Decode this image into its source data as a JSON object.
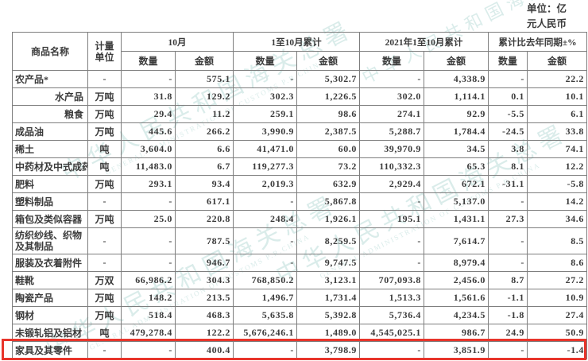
{
  "meta": {
    "unit_note_line1": "单位：亿",
    "unit_note_line2": "元人民币"
  },
  "watermark": {
    "cn": "中华人民共和国海关总署",
    "en": "GENERAL ADMINISTRATION OF CUSTOMS P.R.CHINA"
  },
  "colors": {
    "highlight_red": "#e8352b",
    "watermark_teal": "rgba(134,192,184,0.30)",
    "text": "#3b3b3b",
    "border": "#7e7e7e"
  },
  "table": {
    "headers": {
      "commodity": "商品名称",
      "unit": "计量单位",
      "groups": [
        "10月",
        "1至10月累计",
        "2021年1至10月累计",
        "累计比去年同期±%"
      ],
      "qty": "数量",
      "amt": "金额"
    },
    "rows": [
      {
        "name": "农产品*",
        "sub": false,
        "tall": false,
        "highlight": false,
        "unit": "-",
        "values": [
          "-",
          "575.1",
          "-",
          "5,302.7",
          "-",
          "4,338.9",
          "-",
          "22.2"
        ]
      },
      {
        "name": "水产品",
        "sub": true,
        "tall": false,
        "highlight": false,
        "unit": "万吨",
        "values": [
          "31.8",
          "129.2",
          "302.3",
          "1,226.5",
          "302.0",
          "1,114.1",
          "0.1",
          "10.1"
        ]
      },
      {
        "name": "粮食",
        "sub": true,
        "tall": false,
        "highlight": false,
        "unit": "万吨",
        "values": [
          "29.4",
          "11.2",
          "259.1",
          "98.6",
          "274.1",
          "92.9",
          "-5.5",
          "6.1"
        ]
      },
      {
        "name": "成品油",
        "sub": false,
        "tall": false,
        "highlight": false,
        "unit": "万吨",
        "values": [
          "445.6",
          "266.2",
          "3,990.9",
          "2,387.5",
          "5,288.7",
          "1,784.4",
          "-24.5",
          "33.8"
        ]
      },
      {
        "name": "稀土",
        "sub": false,
        "tall": false,
        "highlight": false,
        "unit": "吨",
        "values": [
          "3,604.0",
          "6.6",
          "41,471.0",
          "60.0",
          "39,970.9",
          "34.5",
          "3.8",
          "74.1"
        ]
      },
      {
        "name": "中药材及中式成药",
        "sub": false,
        "tall": false,
        "highlight": false,
        "unit": "吨",
        "values": [
          "11,483.0",
          "6.7",
          "119,277.3",
          "73.2",
          "110,332.3",
          "65.3",
          "8.1",
          "12.2"
        ]
      },
      {
        "name": "肥料",
        "sub": false,
        "tall": false,
        "highlight": false,
        "unit": "万吨",
        "values": [
          "293.1",
          "93.4",
          "2,019.3",
          "632.9",
          "2,929.4",
          "672.1",
          "-31.1",
          "-5.8"
        ]
      },
      {
        "name": "塑料制品",
        "sub": false,
        "tall": false,
        "highlight": false,
        "unit": "-",
        "values": [
          "-",
          "617.1",
          "-",
          "5,867.8",
          "-",
          "5,137.0",
          "-",
          "14.2"
        ]
      },
      {
        "name": "箱包及类似容器",
        "sub": false,
        "tall": false,
        "highlight": false,
        "unit": "万吨",
        "values": [
          "25.0",
          "220.8",
          "248.4",
          "1,926.1",
          "195.1",
          "1,431.1",
          "27.3",
          "34.6"
        ]
      },
      {
        "name": "纺织纱线、织物及其制品",
        "sub": false,
        "tall": true,
        "highlight": false,
        "unit": "-",
        "values": [
          "-",
          "787.5",
          "-",
          "8,259.5",
          "-",
          "7,614.7",
          "-",
          "8.5"
        ]
      },
      {
        "name": "服装及衣着附件",
        "sub": false,
        "tall": false,
        "highlight": false,
        "unit": "-",
        "values": [
          "-",
          "946.7",
          "-",
          "9,747.5",
          "-",
          "8,979.4",
          "-",
          "8.6"
        ]
      },
      {
        "name": "鞋靴",
        "sub": false,
        "tall": false,
        "highlight": false,
        "unit": "万双",
        "values": [
          "66,986.2",
          "304.3",
          "768,850.2",
          "3,123.1",
          "707,093.8",
          "2,456.0",
          "8.7",
          "27.2"
        ]
      },
      {
        "name": "陶瓷产品",
        "sub": false,
        "tall": false,
        "highlight": false,
        "unit": "万吨",
        "values": [
          "148.2",
          "213.5",
          "1,496.7",
          "1,731.4",
          "1,513.3",
          "1,561.6",
          "-1.1",
          "10.9"
        ]
      },
      {
        "name": "钢材",
        "sub": false,
        "tall": false,
        "highlight": false,
        "unit": "万吨",
        "values": [
          "518.4",
          "468.3",
          "5,635.8",
          "5,392.8",
          "5,736.4",
          "4,234.5",
          "-1.8",
          "27.4"
        ]
      },
      {
        "name": "未锻轧铝及铝材",
        "sub": false,
        "tall": false,
        "highlight": false,
        "unit": "吨",
        "values": [
          "479,278.4",
          "122.2",
          "5,676,246.1",
          "1,489.0",
          "4,545,025.1",
          "986.7",
          "24.9",
          "50.9"
        ]
      },
      {
        "name": "家具及其零件",
        "sub": false,
        "tall": false,
        "highlight": true,
        "unit": "-",
        "values": [
          "-",
          "400.4",
          "-",
          "3,798.9",
          "-",
          "3,851.9",
          "-",
          "-1.4"
        ]
      }
    ]
  }
}
